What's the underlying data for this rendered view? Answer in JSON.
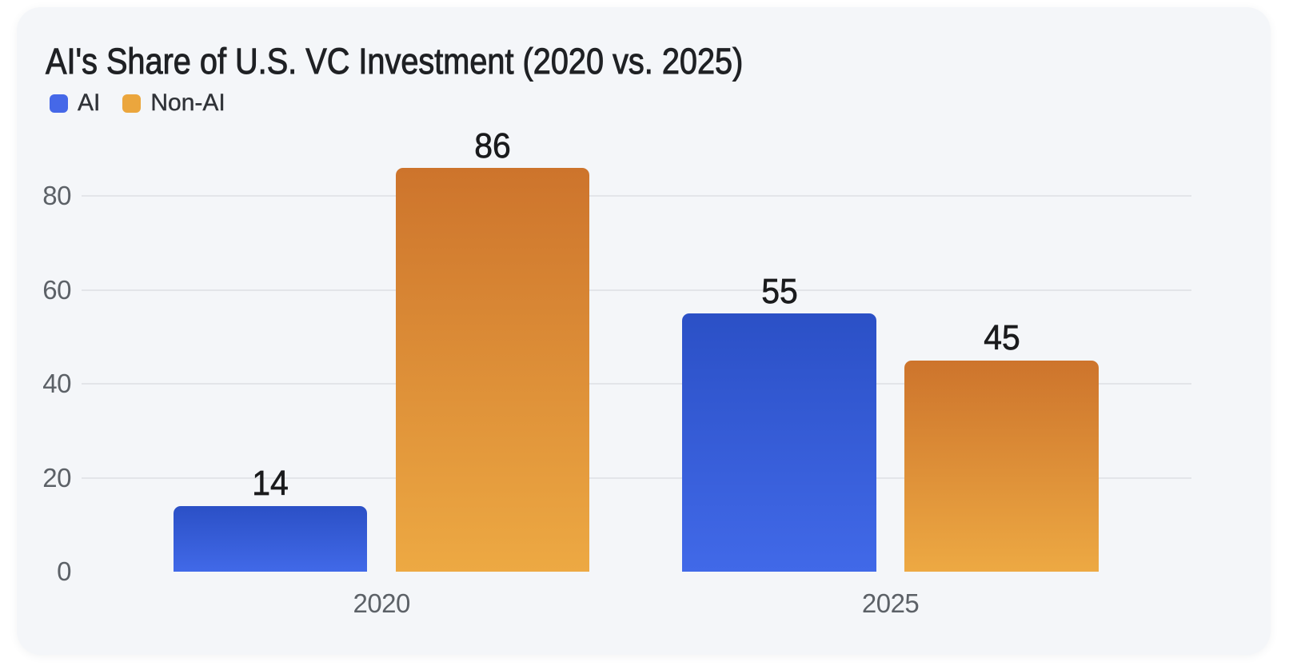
{
  "page": {
    "background": "#ffffff",
    "card_background": "#f4f6f9"
  },
  "chart_data": {
    "type": "bar",
    "title": "AI's Share of U.S. VC Investment (2020 vs. 2025)",
    "categories": [
      "2020",
      "2025"
    ],
    "series": [
      {
        "name": "AI",
        "values": [
          14,
          55
        ]
      },
      {
        "name": "Non-AI",
        "values": [
          86,
          45
        ]
      }
    ],
    "yticks": [
      0,
      20,
      40,
      60,
      80
    ],
    "ylim": [
      0,
      86
    ],
    "grid": "horizontal",
    "zero_gridline": false,
    "legend_position": "top-left",
    "value_labels_shown": true,
    "xlabel": "",
    "ylabel": ""
  },
  "style": {
    "series_colors": [
      {
        "name": "AI",
        "gradient_top": "#2b50c6",
        "gradient_bottom": "#4169e8",
        "legend_swatch": "#4568e8"
      },
      {
        "name": "Non-AI",
        "gradient_top": "#cd742c",
        "gradient_bottom": "#eda943",
        "legend_swatch": "#eba63d"
      }
    ],
    "gridline_color": "#e3e5e9",
    "title_color": "#1f2124",
    "value_label_color": "#1a1b1d",
    "tick_label_color": "#5c6167",
    "legend_label_color": "#303338"
  }
}
